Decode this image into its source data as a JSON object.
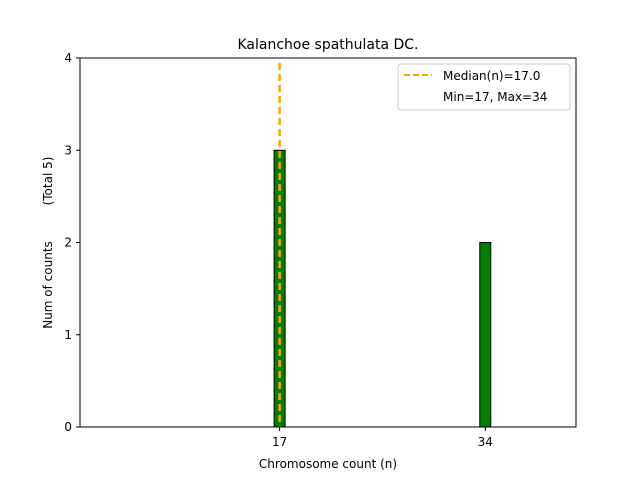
{
  "chart_data": {
    "type": "bar",
    "title": "Kalanchoe spathulata DC.",
    "xlabel": "Chromosome count (n)",
    "ylabel": "Num of counts",
    "ylabel_note": "(Total 5)",
    "categories": [
      "17",
      "34"
    ],
    "x": [
      17,
      34
    ],
    "values": [
      3,
      2
    ],
    "xlim": [
      0.5,
      41.5
    ],
    "ylim": [
      0,
      4
    ],
    "xticks": [
      17,
      34
    ],
    "yticks": [
      0,
      1,
      2,
      3,
      4
    ],
    "grid": false,
    "bar_color": "#008000",
    "median": 17.0,
    "median_color": "#FFA500",
    "legend": {
      "placement": "top-right",
      "entries": [
        "Median(n)=17.0",
        "Min=17, Max=34"
      ]
    }
  }
}
